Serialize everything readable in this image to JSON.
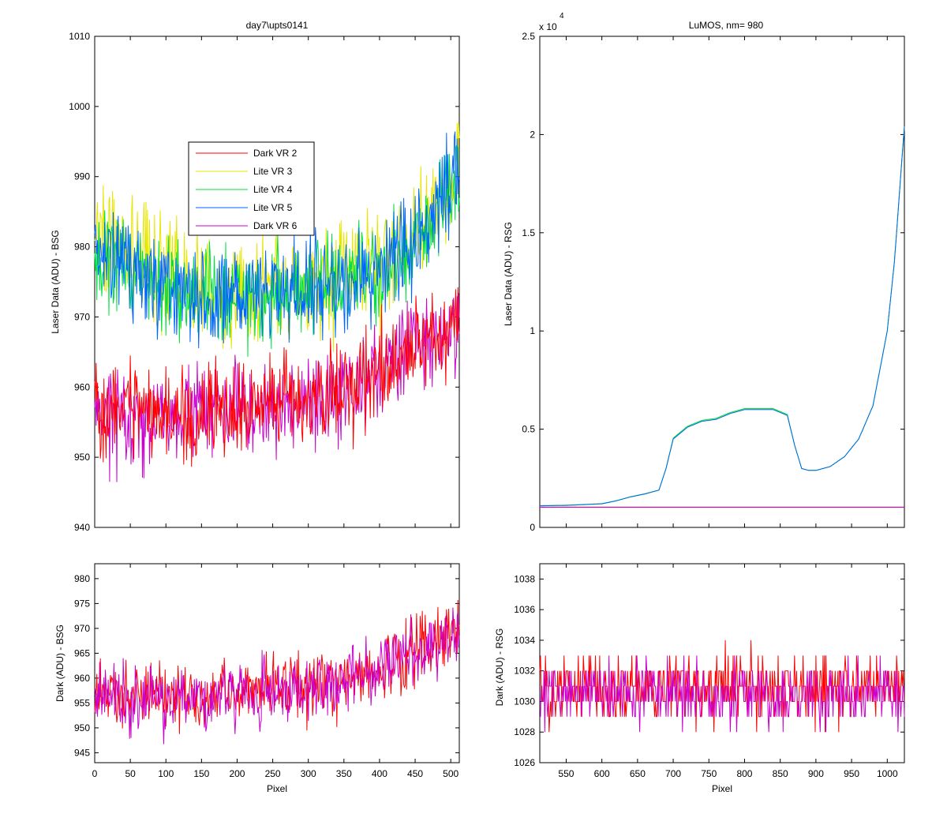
{
  "figure": {
    "background": "#ffffff",
    "axes_color": "#000000"
  },
  "series_styles": [
    {
      "name": "Dark VR 2",
      "color": "#ff0000"
    },
    {
      "name": "Lite VR 3",
      "color": "#e6e600"
    },
    {
      "name": "Lite VR 4",
      "color": "#00e040"
    },
    {
      "name": "Lite VR 5",
      "color": "#0066ff"
    },
    {
      "name": "Dark VR 6",
      "color": "#cc00cc"
    }
  ],
  "chart_data": [
    {
      "id": "tl",
      "type": "line",
      "title": "day7\\upts0141",
      "xlabel": "",
      "ylabel": "Laser Data (ADU) - BSG",
      "xlim": [
        0,
        512
      ],
      "ylim": [
        940,
        1010
      ],
      "xticks": [
        0,
        50,
        100,
        150,
        200,
        250,
        300,
        350,
        400,
        450,
        500
      ],
      "xtick_labels": [],
      "yticks": [
        940,
        950,
        960,
        970,
        980,
        990,
        1000,
        1010
      ],
      "ytick_labels": [
        "940",
        "950",
        "960",
        "970",
        "980",
        "990",
        "1000",
        "1010"
      ],
      "legend": {
        "position": "upper-center",
        "entries": [
          "Dark VR 2",
          "Lite VR 3",
          "Lite VR 4",
          "Lite VR 5",
          "Dark VR 6"
        ]
      },
      "series": [
        {
          "name": "Lite VR 3",
          "color": "#e6e600",
          "x": [
            0,
            50,
            100,
            150,
            200,
            250,
            300,
            350,
            400,
            450,
            500,
            512
          ],
          "y": [
            982,
            980,
            976,
            974,
            974,
            974,
            975,
            976,
            977,
            981,
            988,
            992
          ],
          "noise": 6
        },
        {
          "name": "Lite VR 4",
          "color": "#00e040",
          "x": [
            0,
            50,
            100,
            150,
            200,
            250,
            300,
            350,
            400,
            450,
            500,
            512
          ],
          "y": [
            979,
            977,
            974,
            973,
            973,
            973,
            974,
            975,
            976,
            980,
            987,
            991
          ],
          "noise": 5
        },
        {
          "name": "Lite VR 5",
          "color": "#0066ff",
          "x": [
            0,
            50,
            100,
            150,
            200,
            250,
            300,
            350,
            400,
            450,
            500,
            512
          ],
          "y": [
            979,
            977,
            974,
            973,
            973,
            973,
            974,
            975,
            977,
            981,
            988,
            992
          ],
          "noise": 5
        },
        {
          "name": "Dark VR 6",
          "color": "#cc00cc",
          "x": [
            0,
            50,
            100,
            150,
            200,
            250,
            300,
            350,
            400,
            450,
            500,
            512
          ],
          "y": [
            956,
            956,
            955,
            956,
            957,
            957,
            958,
            959,
            962,
            966,
            968,
            969
          ],
          "noise": 5
        },
        {
          "name": "Dark VR 2",
          "color": "#ff0000",
          "x": [
            0,
            50,
            100,
            150,
            200,
            250,
            300,
            350,
            400,
            450,
            500,
            512
          ],
          "y": [
            957,
            957,
            956,
            956,
            957,
            958,
            958,
            960,
            962,
            966,
            968,
            970
          ],
          "noise": 5
        }
      ]
    },
    {
      "id": "tr",
      "type": "line",
      "title": "LuMOS, nm= 980",
      "xlabel": "",
      "ylabel": "Laser Data (ADU) - RSG",
      "exponent_label": "x 10",
      "exponent_power": "4",
      "xlim": [
        513,
        1024
      ],
      "ylim": [
        0,
        2.5
      ],
      "xticks": [
        550,
        600,
        650,
        700,
        750,
        800,
        850,
        900,
        950,
        1000
      ],
      "xtick_labels": [],
      "yticks": [
        0,
        0.5,
        1,
        1.5,
        2,
        2.5
      ],
      "ytick_labels": [
        "0",
        "0.5",
        "1",
        "1.5",
        "2",
        "2.5"
      ],
      "series": [
        {
          "name": "Lite VR 3",
          "color": "#e6e600",
          "x": [
            513,
            550,
            600,
            620,
            640,
            660,
            680,
            690,
            700,
            720,
            740,
            760,
            780,
            800,
            820,
            840,
            860,
            870,
            880,
            890,
            900,
            920,
            940,
            960,
            980,
            1000,
            1010,
            1020,
            1024
          ],
          "y": [
            0.11,
            0.112,
            0.12,
            0.135,
            0.155,
            0.17,
            0.19,
            0.3,
            0.45,
            0.51,
            0.54,
            0.55,
            0.58,
            0.6,
            0.6,
            0.6,
            0.57,
            0.42,
            0.3,
            0.29,
            0.29,
            0.31,
            0.36,
            0.45,
            0.62,
            1.0,
            1.35,
            1.85,
            2.04
          ]
        },
        {
          "name": "Lite VR 4",
          "color": "#00e040",
          "x": [
            513,
            550,
            600,
            620,
            640,
            660,
            680,
            690,
            700,
            720,
            740,
            760,
            780,
            800,
            820,
            840,
            860,
            870,
            880,
            890,
            900,
            920,
            940,
            960,
            980,
            1000,
            1010,
            1020,
            1024
          ],
          "y": [
            0.111,
            0.113,
            0.121,
            0.136,
            0.156,
            0.171,
            0.19,
            0.3,
            0.455,
            0.515,
            0.545,
            0.555,
            0.585,
            0.605,
            0.605,
            0.605,
            0.575,
            0.42,
            0.3,
            0.29,
            0.29,
            0.31,
            0.36,
            0.45,
            0.62,
            1.0,
            1.35,
            1.85,
            2.04
          ]
        },
        {
          "name": "Lite VR 5",
          "color": "#0066ff",
          "x": [
            513,
            550,
            600,
            620,
            640,
            660,
            680,
            690,
            700,
            720,
            740,
            760,
            780,
            800,
            820,
            840,
            860,
            870,
            880,
            890,
            900,
            920,
            940,
            960,
            980,
            1000,
            1010,
            1020,
            1024
          ],
          "y": [
            0.11,
            0.112,
            0.12,
            0.135,
            0.155,
            0.17,
            0.19,
            0.3,
            0.45,
            0.51,
            0.54,
            0.55,
            0.58,
            0.6,
            0.6,
            0.6,
            0.57,
            0.42,
            0.3,
            0.29,
            0.29,
            0.31,
            0.36,
            0.45,
            0.62,
            1.0,
            1.35,
            1.85,
            2.04
          ]
        },
        {
          "name": "Dark VR 2",
          "color": "#ff0000",
          "x": [
            513,
            1024
          ],
          "y": [
            0.103,
            0.103
          ]
        },
        {
          "name": "Dark VR 6",
          "color": "#cc00cc",
          "x": [
            513,
            1024
          ],
          "y": [
            0.103,
            0.103
          ]
        }
      ]
    },
    {
      "id": "bl",
      "type": "line",
      "title": "",
      "xlabel": "Pixel",
      "ylabel": "Dark (ADU) - BSG",
      "xlim": [
        0,
        512
      ],
      "ylim": [
        943,
        983
      ],
      "xticks": [
        0,
        50,
        100,
        150,
        200,
        250,
        300,
        350,
        400,
        450,
        500
      ],
      "xtick_labels": [
        "0",
        "50",
        "100",
        "150",
        "200",
        "250",
        "300",
        "350",
        "400",
        "450",
        "500"
      ],
      "yticks": [
        945,
        950,
        955,
        960,
        965,
        970,
        975,
        980
      ],
      "ytick_labels": [
        "945",
        "950",
        "955",
        "960",
        "965",
        "970",
        "975",
        "980"
      ],
      "series": [
        {
          "name": "Dark VR 2",
          "color": "#ff0000",
          "x": [
            0,
            50,
            100,
            150,
            200,
            250,
            300,
            350,
            400,
            450,
            500,
            512
          ],
          "y": [
            957,
            957,
            956,
            956,
            957,
            958,
            958,
            960,
            962,
            966,
            968,
            970
          ],
          "noise": 5
        },
        {
          "name": "Dark VR 6",
          "color": "#cc00cc",
          "x": [
            0,
            50,
            100,
            150,
            200,
            250,
            300,
            350,
            400,
            450,
            500,
            512
          ],
          "y": [
            956,
            956,
            955,
            956,
            957,
            957,
            958,
            959,
            962,
            966,
            968,
            969
          ],
          "noise": 5
        }
      ]
    },
    {
      "id": "br",
      "type": "line",
      "title": "",
      "xlabel": "Pixel",
      "ylabel": "Dark (ADU) - RSG",
      "xlim": [
        513,
        1024
      ],
      "ylim": [
        1026,
        1039
      ],
      "xticks": [
        550,
        600,
        650,
        700,
        750,
        800,
        850,
        900,
        950,
        1000
      ],
      "xtick_labels": [
        "550",
        "600",
        "650",
        "700",
        "750",
        "800",
        "850",
        "900",
        "950",
        "1000"
      ],
      "yticks": [
        1026,
        1028,
        1030,
        1032,
        1034,
        1036,
        1038
      ],
      "ytick_labels": [
        "1026",
        "1028",
        "1030",
        "1032",
        "1034",
        "1036",
        "1038"
      ],
      "series": [
        {
          "name": "Dark VR 2",
          "color": "#ff0000",
          "x": [
            513,
            1024
          ],
          "y": [
            1030.8,
            1030.8
          ],
          "noise": 1.6,
          "quantize": 1
        },
        {
          "name": "Dark VR 6",
          "color": "#cc00cc",
          "x": [
            513,
            1024
          ],
          "y": [
            1030.5,
            1030.5
          ],
          "noise": 1.5,
          "quantize": 1
        }
      ]
    }
  ]
}
